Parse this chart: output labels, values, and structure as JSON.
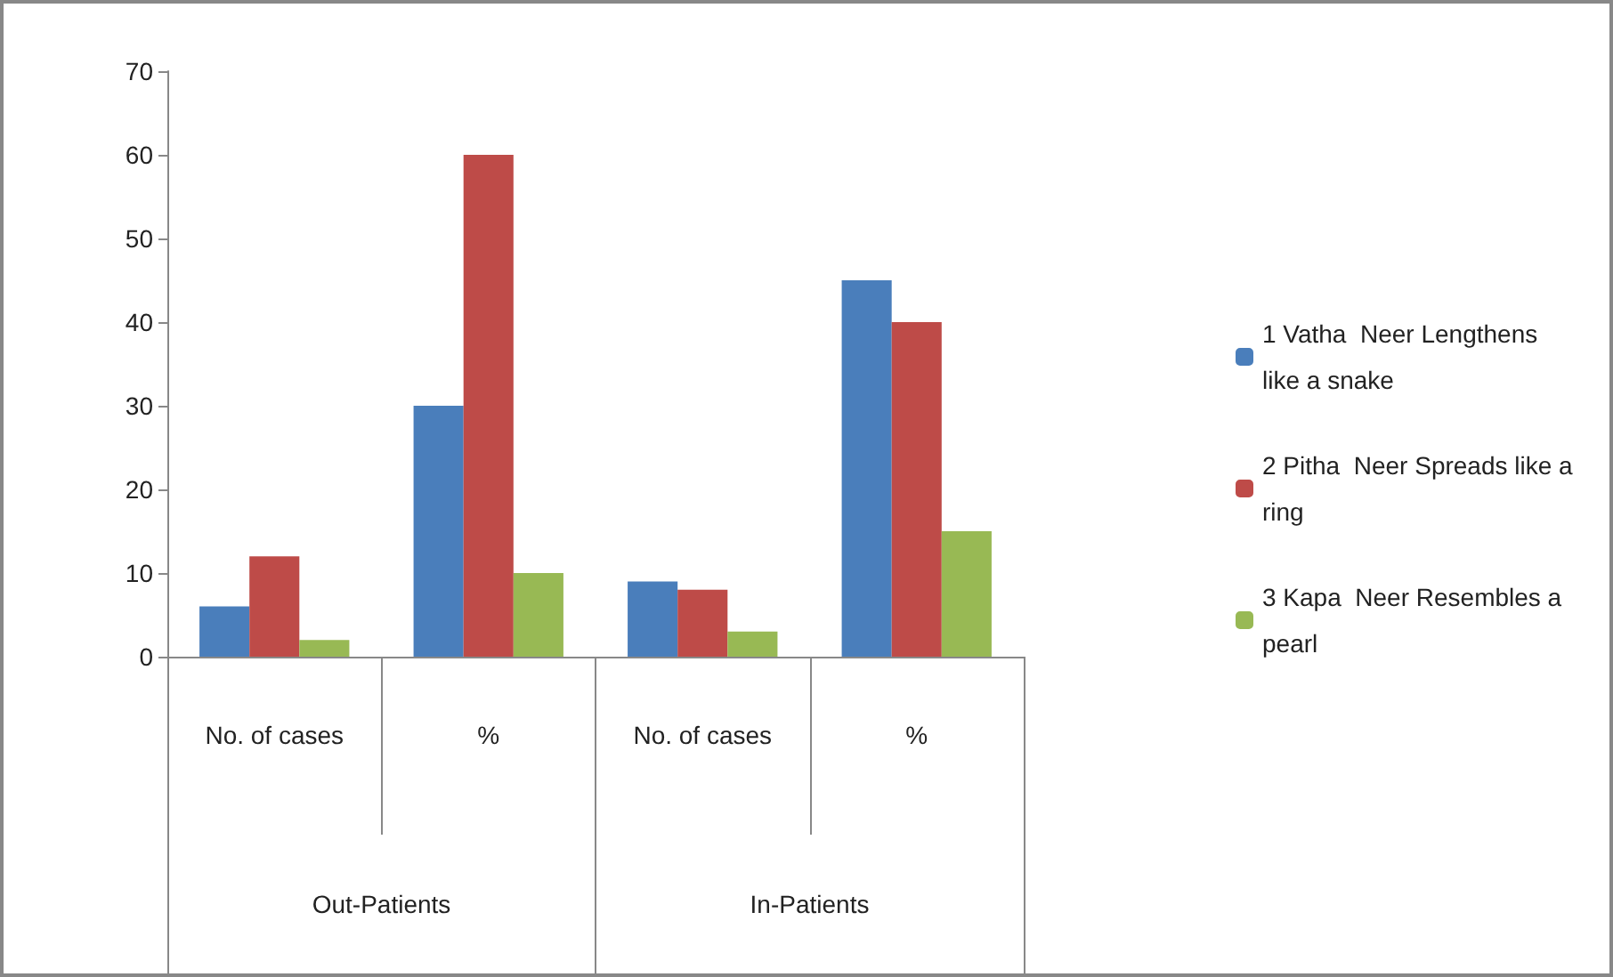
{
  "chart_data": {
    "type": "bar",
    "categories": [
      "No. of cases",
      "%",
      "No. of cases",
      "%"
    ],
    "annotations": [
      "Out-Patients",
      "In-Patients"
    ],
    "series": [
      {
        "name": "1 Vatha  Neer Lengthens like a snake",
        "color": "#4a7ebb",
        "values": [
          6,
          30,
          9,
          45
        ]
      },
      {
        "name": "2 Pitha  Neer Spreads like a ring",
        "color": "#be4b48",
        "values": [
          12,
          60,
          8,
          40
        ]
      },
      {
        "name": "3 Kapa  Neer Resembles a pearl",
        "color": "#98b954",
        "values": [
          2,
          10,
          3,
          15
        ]
      }
    ],
    "ylim": [
      0,
      70
    ],
    "yticks": [
      0,
      10,
      20,
      30,
      40,
      50,
      60,
      70
    ],
    "grid": false,
    "legend": "right"
  }
}
